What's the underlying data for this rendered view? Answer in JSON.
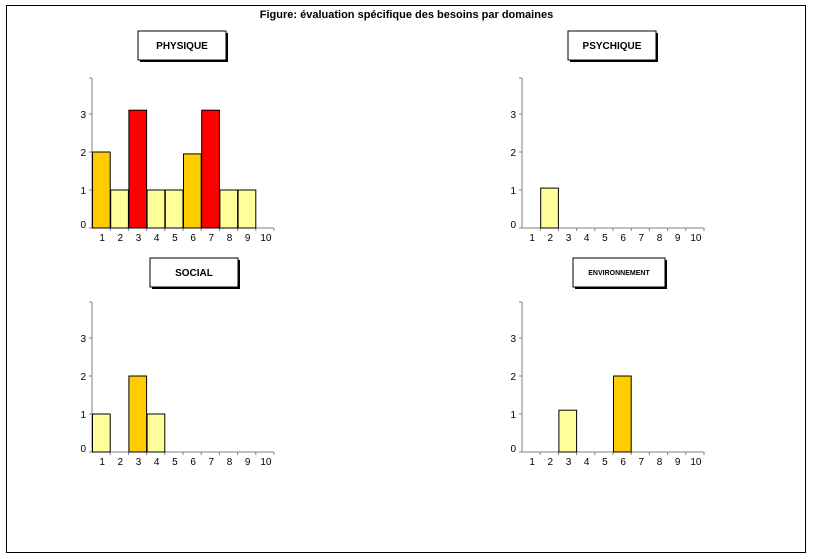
{
  "title": "Figure: évaluation spécifique des besoins par domaines",
  "colors": {
    "level1": "#ffff99",
    "level2": "#ffcc00",
    "level3": "#ff0000"
  },
  "chart_data": [
    {
      "type": "bar",
      "title": "PHYSIQUE",
      "categories": [
        "1",
        "2",
        "3",
        "4",
        "5",
        "6",
        "7",
        "8",
        "9",
        "10"
      ],
      "values": [
        2,
        1,
        3.1,
        1,
        1,
        1.95,
        3.1,
        1,
        1,
        0
      ],
      "yticks": [
        "0",
        "1",
        "2",
        "3"
      ],
      "ylim": [
        0,
        4
      ],
      "grid": false
    },
    {
      "type": "bar",
      "title": "PSYCHIQUE",
      "categories": [
        "1",
        "2",
        "3",
        "4",
        "5",
        "6",
        "7",
        "8",
        "9",
        "10"
      ],
      "values": [
        0,
        1.05,
        0,
        0,
        0,
        0,
        0,
        0,
        0,
        0
      ],
      "yticks": [
        "0",
        "1",
        "2",
        "3"
      ],
      "ylim": [
        0,
        4
      ],
      "grid": false
    },
    {
      "type": "bar",
      "title": "SOCIAL",
      "categories": [
        "1",
        "2",
        "3",
        "4",
        "5",
        "6",
        "7",
        "8",
        "9",
        "10"
      ],
      "values": [
        1,
        0,
        2,
        1,
        0,
        0,
        0,
        0,
        0,
        0
      ],
      "yticks": [
        "0",
        "1",
        "2",
        "3"
      ],
      "ylim": [
        0,
        4
      ],
      "grid": false
    },
    {
      "type": "bar",
      "title": "ENVIRONNEMENT",
      "categories": [
        "1",
        "2",
        "3",
        "4",
        "5",
        "6",
        "7",
        "8",
        "9",
        "10"
      ],
      "values": [
        0,
        0,
        1.1,
        0,
        0,
        2,
        0,
        0,
        0,
        0
      ],
      "yticks": [
        "0",
        "1",
        "2",
        "3"
      ],
      "ylim": [
        0,
        4
      ],
      "grid": false
    }
  ]
}
